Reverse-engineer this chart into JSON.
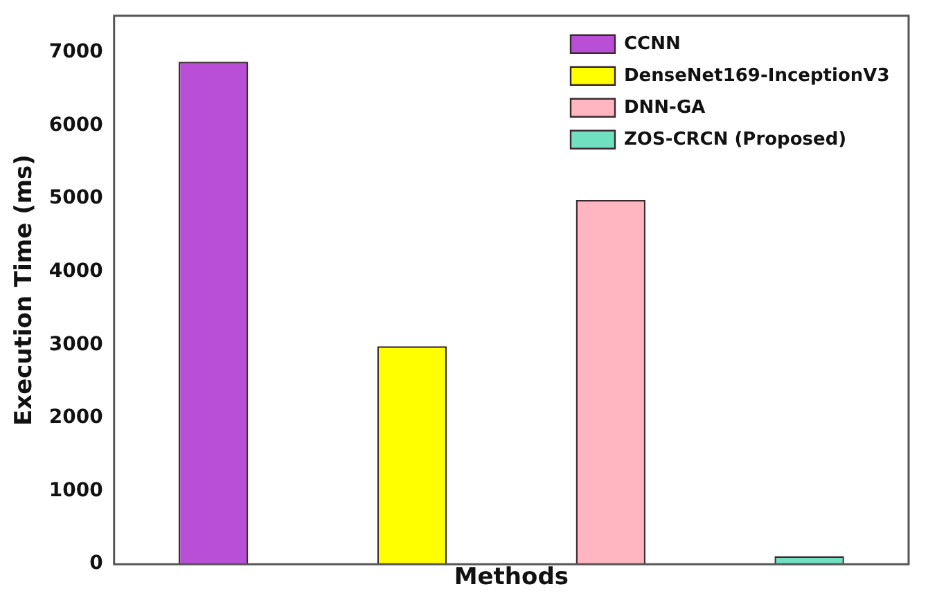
{
  "chart_data": {
    "type": "bar",
    "xlabel": "Methods",
    "ylabel": "Execution Time (ms)",
    "categories": [
      null,
      null,
      null,
      null
    ],
    "series": [
      {
        "name": "CCNN",
        "color": "#b94fd6",
        "values": [
          6870,
          null,
          null,
          null
        ]
      },
      {
        "name": "DenseNet169-InceptionV3",
        "color": "#ffff00",
        "values": [
          null,
          2980,
          null,
          null
        ]
      },
      {
        "name": "DNN-GA",
        "color": "#ffb6c1",
        "values": [
          null,
          null,
          4980,
          null
        ]
      },
      {
        "name": "ZOS-CRCN (Proposed)",
        "color": "#6fe0c0",
        "values": [
          null,
          null,
          null,
          110
        ]
      }
    ],
    "stacked": true,
    "ylim": [
      0,
      7500
    ],
    "yticks": [
      0,
      1000,
      2000,
      3000,
      4000,
      5000,
      6000,
      7000
    ],
    "grid": false,
    "legend": "top right",
    "tick_labels": "y"
  }
}
